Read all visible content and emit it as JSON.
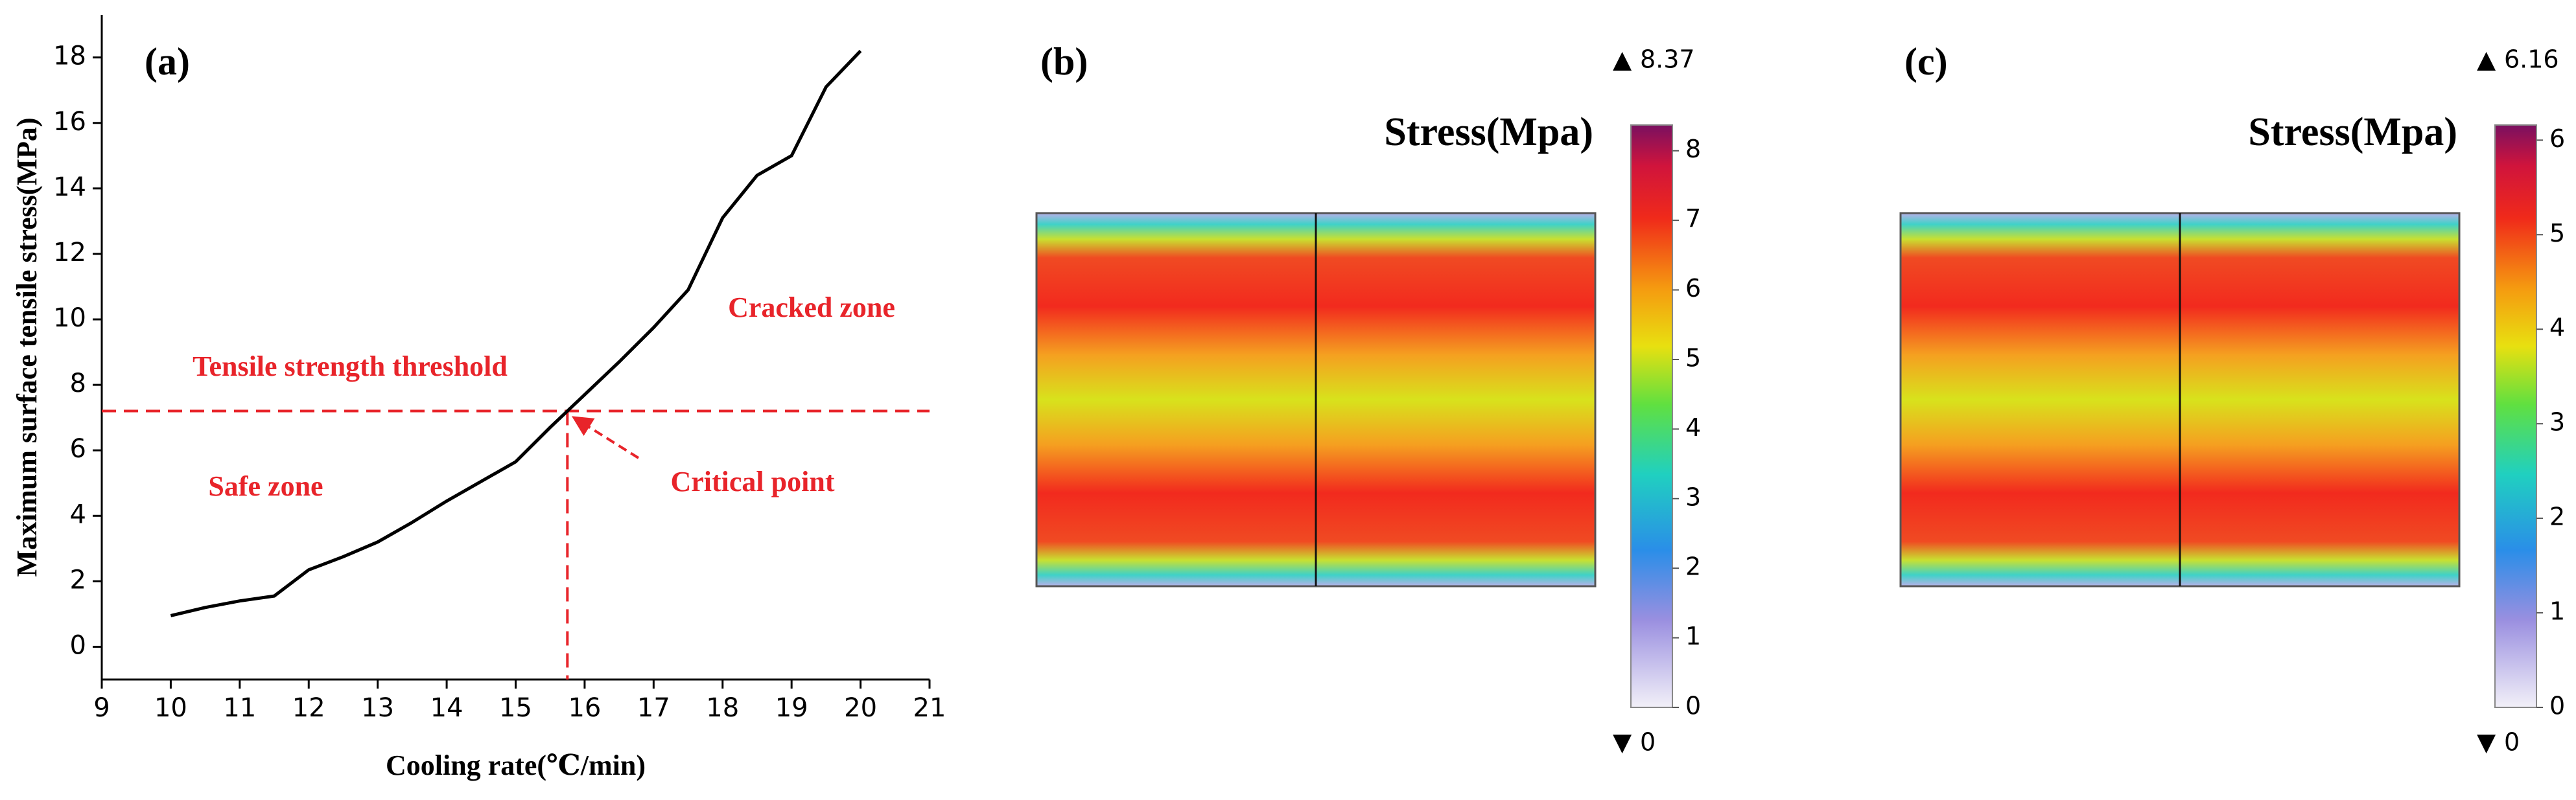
{
  "chart_data": [
    {
      "type": "line",
      "title": "(a)",
      "x_label": "Cooling rate(℃/min)",
      "y_label": "Maximum surface tensile stress(MPa)",
      "x": [
        10,
        10.5,
        11,
        11.5,
        12,
        12.5,
        13,
        13.5,
        14,
        14.5,
        15,
        15.5,
        16,
        16.5,
        17,
        17.5,
        18,
        18.5,
        19,
        19.5,
        20
      ],
      "series": [
        {
          "color": "#000000",
          "values": [
            0.95,
            1.2,
            1.4,
            1.55,
            2.35,
            2.75,
            3.2,
            3.8,
            4.45,
            5.05,
            5.65,
            6.7,
            7.7,
            8.7,
            9.75,
            10.9,
            13.1,
            14.4,
            15.0,
            17.1,
            18.2
          ]
        }
      ],
      "xlim": [
        9,
        21
      ],
      "xticks": [
        9,
        10,
        11,
        12,
        13,
        14,
        15,
        16,
        17,
        18,
        19,
        20,
        21
      ],
      "ylim": [
        -1,
        19.3
      ],
      "yticks": [
        0,
        2,
        4,
        6,
        8,
        10,
        12,
        14,
        16,
        18
      ],
      "threshold": 7.2,
      "critical_x": 15.75,
      "annotation_color": "#e8242a",
      "annotations": [
        "Tensile strength threshold",
        "Cracked zone",
        "Safe zone",
        "Critical point"
      ]
    },
    {
      "type": "contour",
      "title": "(b)",
      "colorbar_label": "Stress(Mpa)",
      "clim": [
        0,
        8.37
      ],
      "colorbar_ticks": [
        0,
        1,
        2,
        3,
        4,
        5,
        6,
        7,
        8
      ]
    },
    {
      "type": "contour",
      "title": "(c)",
      "colorbar_label": "Stress(Mpa)",
      "clim": [
        0,
        6.16
      ],
      "colorbar_ticks": [
        0,
        1,
        2,
        3,
        4,
        5,
        6
      ]
    }
  ]
}
